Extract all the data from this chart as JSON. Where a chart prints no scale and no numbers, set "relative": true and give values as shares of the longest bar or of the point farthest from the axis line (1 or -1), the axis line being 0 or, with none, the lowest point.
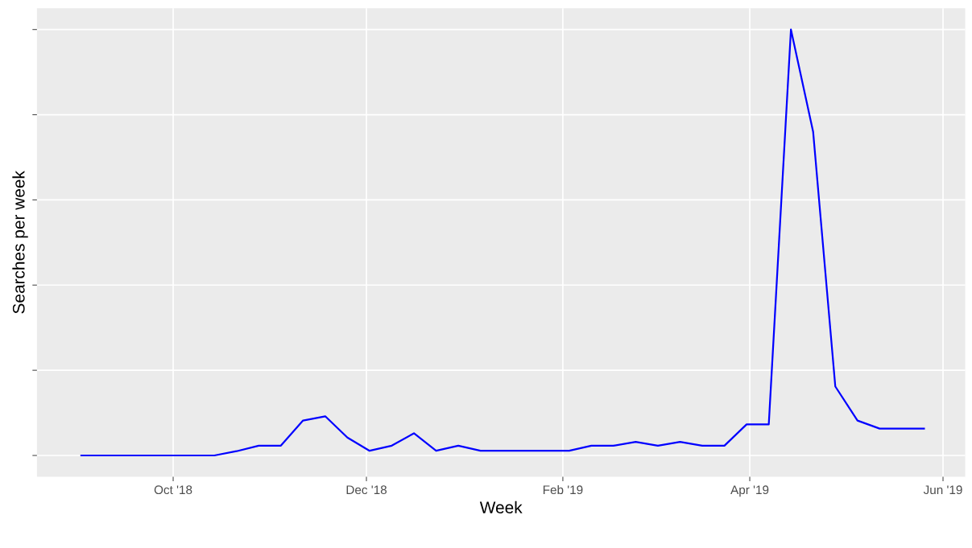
{
  "chart_data": {
    "type": "line",
    "xlabel": "Week",
    "ylabel": "Searches per week",
    "relative": true,
    "x": [
      "2018-09-02",
      "2018-09-09",
      "2018-09-16",
      "2018-09-23",
      "2018-09-30",
      "2018-10-07",
      "2018-10-14",
      "2018-10-21",
      "2018-10-28",
      "2018-11-04",
      "2018-11-11",
      "2018-11-18",
      "2018-11-25",
      "2018-12-02",
      "2018-12-09",
      "2018-12-16",
      "2018-12-23",
      "2018-12-30",
      "2019-01-06",
      "2019-01-13",
      "2019-01-20",
      "2019-01-27",
      "2019-02-03",
      "2019-02-10",
      "2019-02-17",
      "2019-02-24",
      "2019-03-03",
      "2019-03-10",
      "2019-03-17",
      "2019-03-24",
      "2019-03-31",
      "2019-04-07",
      "2019-04-14",
      "2019-04-21",
      "2019-04-28",
      "2019-05-05",
      "2019-05-12",
      "2019-05-19",
      "2019-05-26"
    ],
    "series": [
      {
        "color": "#0000ff",
        "values": [
          0,
          0,
          0,
          0,
          0,
          0,
          0,
          0.01,
          0.023,
          0.023,
          0.082,
          0.092,
          0.042,
          0.011,
          0.023,
          0.052,
          0.011,
          0.023,
          0.011,
          0.011,
          0.011,
          0.011,
          0.011,
          0.023,
          0.023,
          0.032,
          0.023,
          0.032,
          0.023,
          0.023,
          0.073,
          0.073,
          1,
          0.76,
          0.162,
          0.082,
          0.063,
          0.063,
          0.063
        ]
      }
    ],
    "xlim": [
      "2018-08-19",
      "2019-06-08"
    ],
    "xticks": [
      {
        "value": "2018-10-01",
        "label": "Oct '18"
      },
      {
        "value": "2018-12-01",
        "label": "Dec '18"
      },
      {
        "value": "2019-02-01",
        "label": "Feb '19"
      },
      {
        "value": "2019-04-01",
        "label": "Apr '19"
      },
      {
        "value": "2019-06-01",
        "label": "Jun '19"
      }
    ],
    "tick_labels": "x",
    "grid": true,
    "marker": "none",
    "line_style": "solid"
  }
}
